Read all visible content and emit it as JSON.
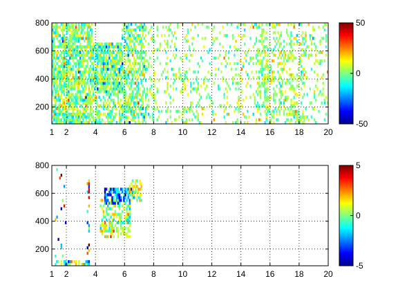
{
  "chart_data": [
    {
      "type": "heatmap",
      "title": "",
      "xlabel": "",
      "ylabel": "",
      "xlim": [
        1,
        20
      ],
      "ylim": [
        80,
        800
      ],
      "xticks": [
        1,
        2,
        4,
        6,
        8,
        10,
        12,
        14,
        16,
        18,
        20
      ],
      "yticks": [
        200,
        400,
        600,
        800
      ],
      "grid": true,
      "colormap": "jet",
      "colorbar": {
        "range": [
          -50,
          50
        ],
        "ticks": [
          50,
          0,
          -50
        ]
      },
      "hotspots": [
        {
          "x": [
            1.0,
            3.8
          ],
          "y": [
            80,
            800
          ],
          "density": 0.75,
          "mean": 0,
          "spread": 10
        },
        {
          "x": [
            3.8,
            5.8
          ],
          "y": [
            300,
            650
          ],
          "density": 0.85,
          "mean": -1,
          "spread": 12
        },
        {
          "x": [
            3.8,
            5.8
          ],
          "y": [
            80,
            300
          ],
          "density": 0.45,
          "mean": 0,
          "spread": 10
        },
        {
          "x": [
            5.8,
            7.4
          ],
          "y": [
            80,
            800
          ],
          "density": 0.55,
          "mean": 0,
          "spread": 10
        },
        {
          "x": [
            7.4,
            20.0
          ],
          "y": [
            80,
            800
          ],
          "density": 0.16,
          "mean": 2,
          "spread": 8
        },
        {
          "x": [
            15.0,
            18.5
          ],
          "y": [
            80,
            800
          ],
          "density": 0.22,
          "mean": 3,
          "spread": 8
        }
      ]
    },
    {
      "type": "heatmap",
      "title": "",
      "xlabel": "",
      "ylabel": "",
      "xlim": [
        1,
        20
      ],
      "ylim": [
        80,
        800
      ],
      "xticks": [
        1,
        2,
        4,
        6,
        8,
        10,
        12,
        14,
        16,
        18,
        20
      ],
      "yticks": [
        200,
        400,
        600,
        800
      ],
      "grid": true,
      "colormap": "jet",
      "colorbar": {
        "range": [
          -5,
          5
        ],
        "ticks": [
          5,
          0,
          -5
        ]
      },
      "hotspots": [
        {
          "x": [
            4.3,
            6.3
          ],
          "y": [
            280,
            560
          ],
          "density": 0.55,
          "mean": 0.5,
          "spread": 1.2
        },
        {
          "x": [
            4.6,
            6.4
          ],
          "y": [
            520,
            640
          ],
          "density": 0.7,
          "mean": -2.5,
          "spread": 1.5
        },
        {
          "x": [
            6.3,
            7.1
          ],
          "y": [
            540,
            700
          ],
          "density": 0.6,
          "mean": 0.5,
          "spread": 1.2
        },
        {
          "x": [
            1.2,
            3.6
          ],
          "y": [
            80,
            110
          ],
          "density": 0.55,
          "mean": 0,
          "spread": 1.5
        },
        {
          "x": [
            1.2,
            2.3
          ],
          "y": [
            120,
            780
          ],
          "density": 0.05,
          "mean": 0,
          "spread": 3
        },
        {
          "x": [
            3.4,
            3.55
          ],
          "y": [
            100,
            700
          ],
          "density": 0.35,
          "mean": 1,
          "spread": 3
        }
      ]
    }
  ]
}
